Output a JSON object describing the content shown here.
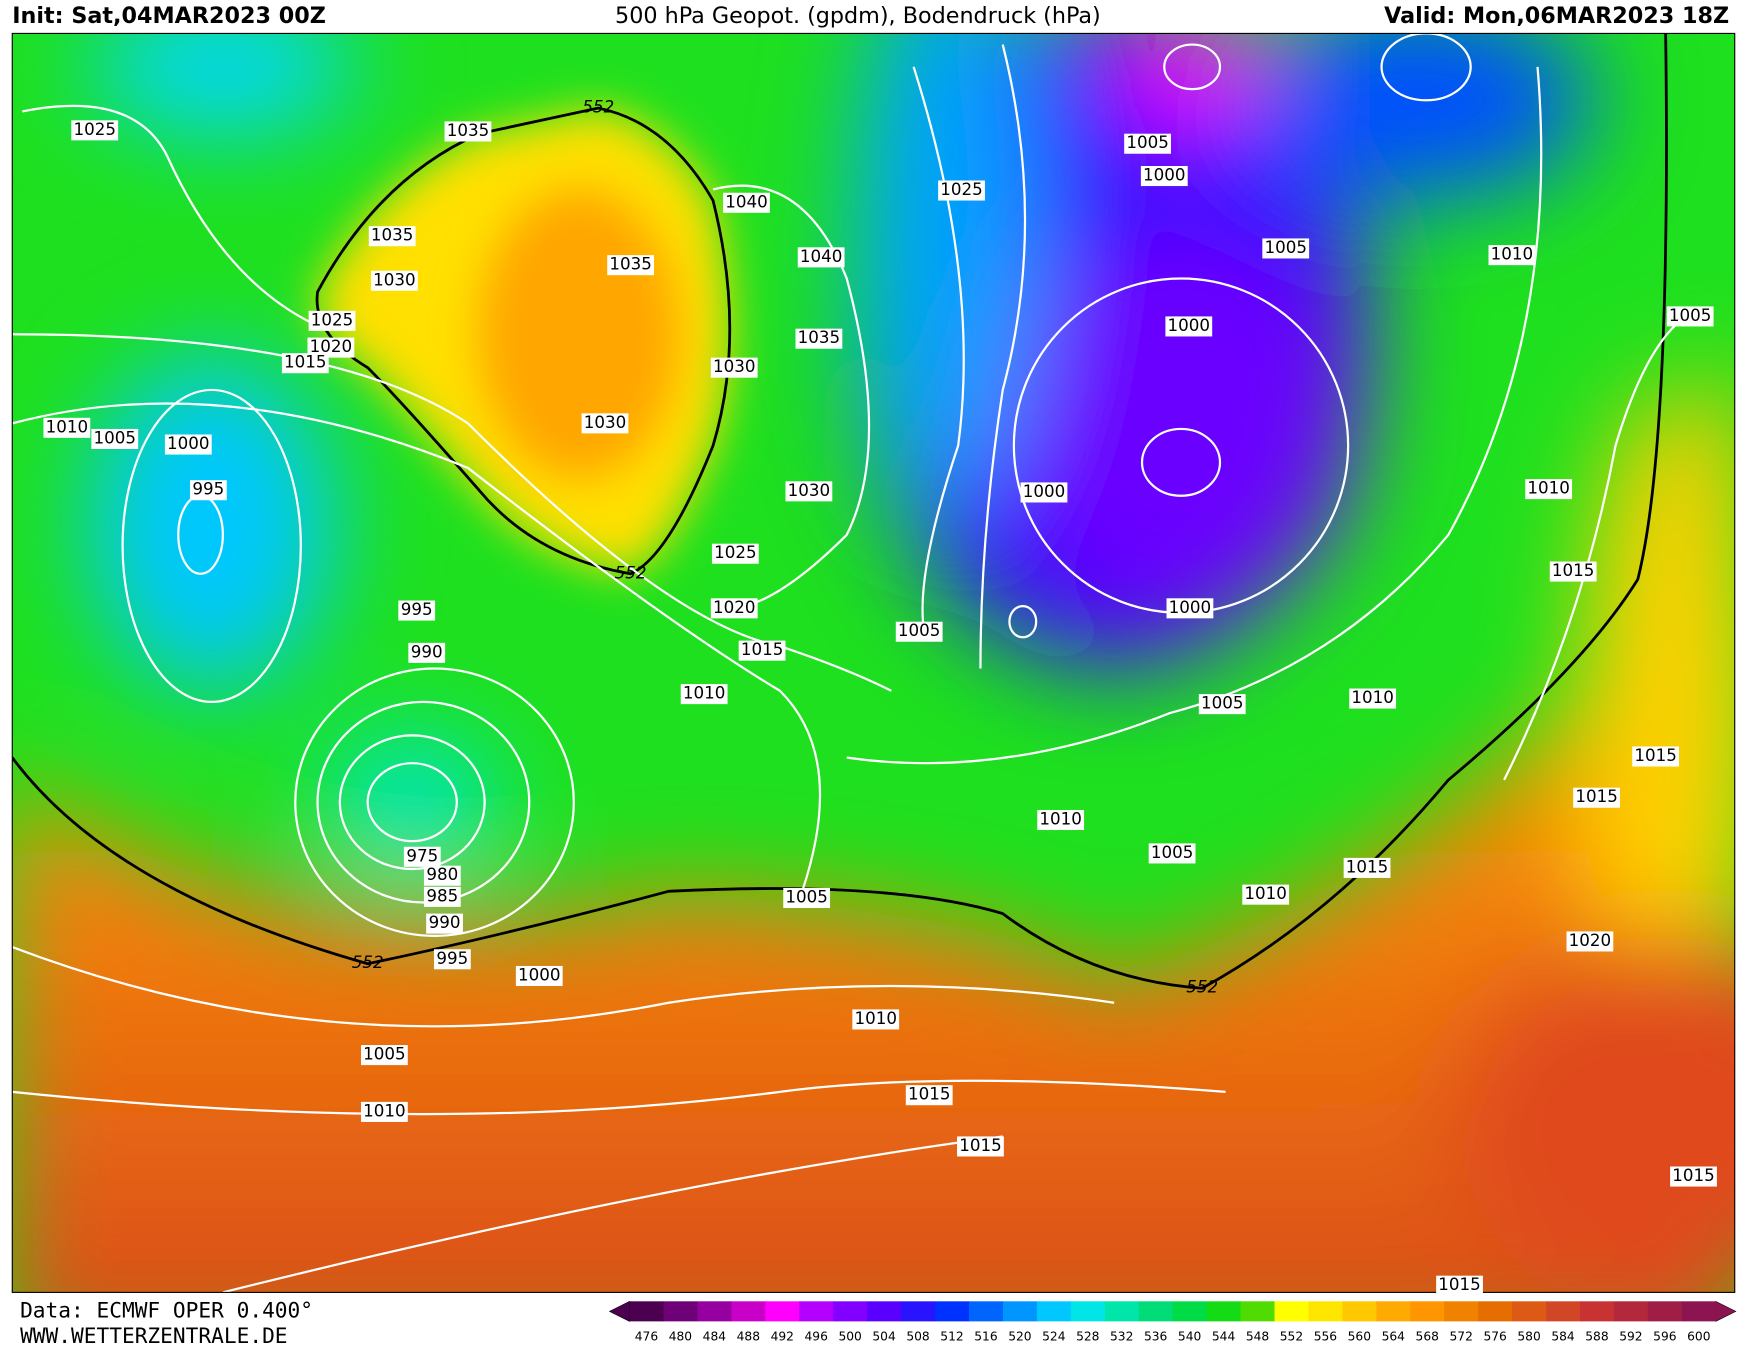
{
  "header": {
    "init": "Init: Sat,04MAR2023 00Z",
    "title": "500 hPa Geopot. (gpdm), Bodendruck (hPa)",
    "valid": "Valid: Mon,06MAR2023 18Z"
  },
  "map": {
    "isobar_labels": [
      "1025",
      "1035",
      "552",
      "1035",
      "1030",
      "1025",
      "1020",
      "1015",
      "1040",
      "1035",
      "1040",
      "1035",
      "1030",
      "1030",
      "1030",
      "1025",
      "552",
      "1020",
      "1015",
      "1010",
      "1010",
      "1005",
      "1000",
      "995",
      "995",
      "990",
      "975",
      "980",
      "985",
      "990",
      "552",
      "995",
      "1000",
      "1005",
      "1010",
      "1005",
      "1025",
      "1005",
      "1000",
      "1005",
      "1010",
      "1005",
      "1000",
      "1000",
      "1010",
      "1015",
      "1000",
      "1005",
      "1005",
      "1010",
      "1015",
      "1015",
      "1010",
      "1005",
      "1010",
      "1015",
      "552",
      "1020",
      "1010",
      "1015",
      "1015",
      "1015",
      "1015"
    ]
  },
  "colorbar": {
    "ticks": [
      "476",
      "480",
      "484",
      "488",
      "492",
      "496",
      "500",
      "504",
      "508",
      "512",
      "516",
      "520",
      "524",
      "528",
      "532",
      "536",
      "540",
      "544",
      "548",
      "552",
      "556",
      "560",
      "564",
      "568",
      "572",
      "576",
      "580",
      "584",
      "588",
      "592",
      "596",
      "600"
    ],
    "colors": [
      "#4b0050",
      "#6e0078",
      "#9600a0",
      "#c800c8",
      "#ff00ff",
      "#b400ff",
      "#8200ff",
      "#5a00ff",
      "#2814ff",
      "#0032ff",
      "#0064ff",
      "#0096ff",
      "#00c8ff",
      "#00e6e6",
      "#00e6aa",
      "#00dc78",
      "#00dc46",
      "#14dc14",
      "#50dc00",
      "#ffff00",
      "#ffe600",
      "#ffc800",
      "#ffaa00",
      "#ff9600",
      "#f08200",
      "#e66e00",
      "#dc5a14",
      "#d24628",
      "#c83232",
      "#b4283c",
      "#a01e46",
      "#8c1450"
    ]
  },
  "footer": {
    "source": "Data: ECMWF OPER 0.400°",
    "site": "WWW.WETTERZENTRALE.DE"
  }
}
